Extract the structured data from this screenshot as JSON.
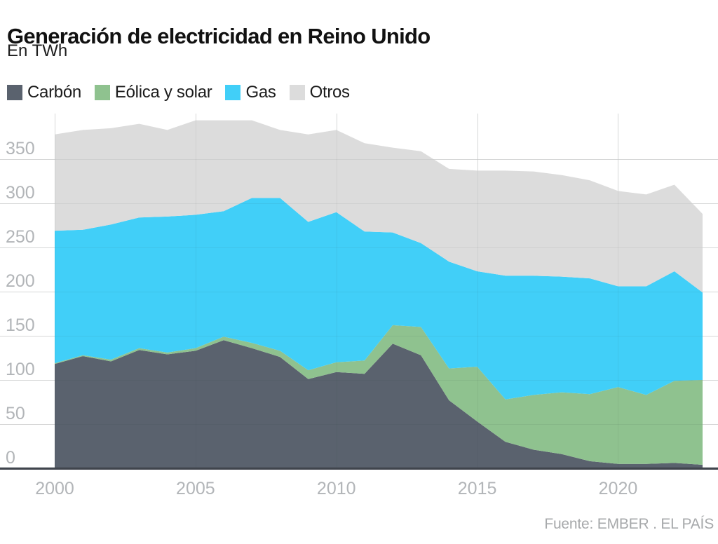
{
  "header": {
    "title": "Generación de electricidad en Reino Unido",
    "subtitle": "En TWh"
  },
  "footer": {
    "source": "Fuente: EMBER . EL PAÍS"
  },
  "colors": {
    "carbon": "#5a626e",
    "eolica_y_solar": "#8fc28f",
    "gas": "#41cff8",
    "otros": "#dcdcdc",
    "axis_line": "#40454d",
    "gridline": "#e4e4e4",
    "tick_label": "#b2b5b8"
  },
  "chart_data": {
    "type": "area",
    "stacked": true,
    "title": "Generación de electricidad en Reino Unido",
    "ylabel": "En TWh",
    "grid": true,
    "legend_position": "top",
    "x": [
      2000,
      2001,
      2002,
      2003,
      2004,
      2005,
      2006,
      2007,
      2008,
      2009,
      2010,
      2011,
      2012,
      2013,
      2014,
      2015,
      2016,
      2017,
      2018,
      2019,
      2020,
      2021,
      2022,
      2023
    ],
    "series": [
      {
        "name": "Carbón",
        "color": "#5a626e",
        "values": [
          118,
          127,
          121,
          134,
          129,
          133,
          145,
          136,
          126,
          101,
          109,
          107,
          141,
          128,
          77,
          53,
          30,
          21,
          16,
          8,
          5,
          5,
          6,
          4
        ]
      },
      {
        "name": "Eólica y solar",
        "color": "#8fc28f",
        "values": [
          1,
          1,
          2,
          2,
          2,
          3,
          4,
          6,
          7,
          10,
          11,
          15,
          21,
          32,
          36,
          62,
          48,
          62,
          70,
          76,
          87,
          78,
          93,
          96
        ]
      },
      {
        "name": "Gas",
        "color": "#41cff8",
        "values": [
          150,
          142,
          153,
          148,
          154,
          151,
          142,
          164,
          173,
          168,
          170,
          146,
          105,
          95,
          121,
          108,
          140,
          135,
          131,
          131,
          114,
          123,
          124,
          99
        ]
      },
      {
        "name": "Otros",
        "color": "#dcdcdc",
        "values": [
          109,
          113,
          109,
          106,
          98,
          107,
          103,
          88,
          77,
          99,
          93,
          100,
          96,
          104,
          105,
          114,
          119,
          118,
          115,
          111,
          108,
          104,
          98,
          89
        ]
      }
    ],
    "y_ticks": [
      0,
      50,
      100,
      150,
      200,
      250,
      300,
      350
    ],
    "x_ticks": [
      2000,
      2005,
      2010,
      2015,
      2020
    ],
    "ylim": [
      0,
      400
    ],
    "xlim": [
      2000,
      2023
    ]
  }
}
